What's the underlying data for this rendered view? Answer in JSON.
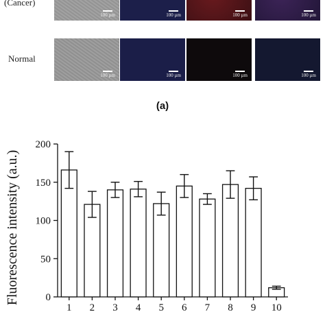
{
  "figure_a": {
    "row_labels": [
      "(Cancer)",
      "Normal"
    ],
    "scale_bar_label": "100 µm",
    "panel_label": "(a)"
  },
  "colors": {
    "brightfield": "#9a9a9a",
    "blue_channel": "#1c1f4a",
    "red_channel": "#4a1416",
    "merge_channel": "#2a1a45",
    "red_channel_normal": "#0e0a0c",
    "merge_channel_normal": "#141830"
  },
  "chart_data": {
    "type": "bar",
    "categories": [
      "1",
      "2",
      "3",
      "4",
      "5",
      "6",
      "7",
      "8",
      "9",
      "10"
    ],
    "values": [
      166,
      121,
      140,
      141,
      122,
      145,
      128,
      147,
      142,
      12
    ],
    "errors": [
      24,
      17,
      10,
      10,
      15,
      15,
      7,
      18,
      15,
      2
    ],
    "ylabel": "Fluorescence intensity (a.u.)",
    "xlabel": "",
    "ylim": [
      0,
      200
    ],
    "yticks": [
      0,
      50,
      100,
      150,
      200
    ],
    "bar_fill": "#ffffff",
    "bar_stroke": "#111111",
    "grid": false
  }
}
